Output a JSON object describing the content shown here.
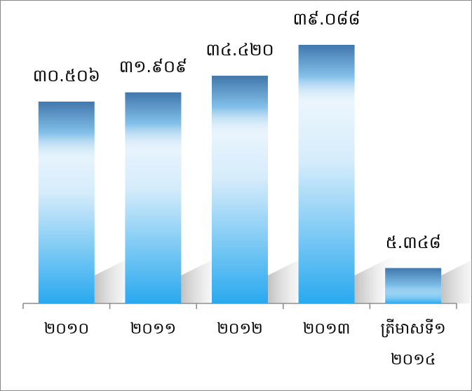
{
  "chart_data": {
    "type": "bar",
    "categories": [
      "២០១០",
      "២០១១",
      "២០១២",
      "២០១៣",
      "ត្រីមាសទី១\n២០១៤"
    ],
    "values": [
      30.506,
      31.909,
      34.42,
      39.088,
      5.348
    ],
    "value_labels": [
      "៣០.៥០៦",
      "៣១.៩០៩",
      "៣៤.៤២០",
      "៣៩.០៨៨",
      "៥.៣៤៨"
    ],
    "color": "#29a9ef"
  }
}
